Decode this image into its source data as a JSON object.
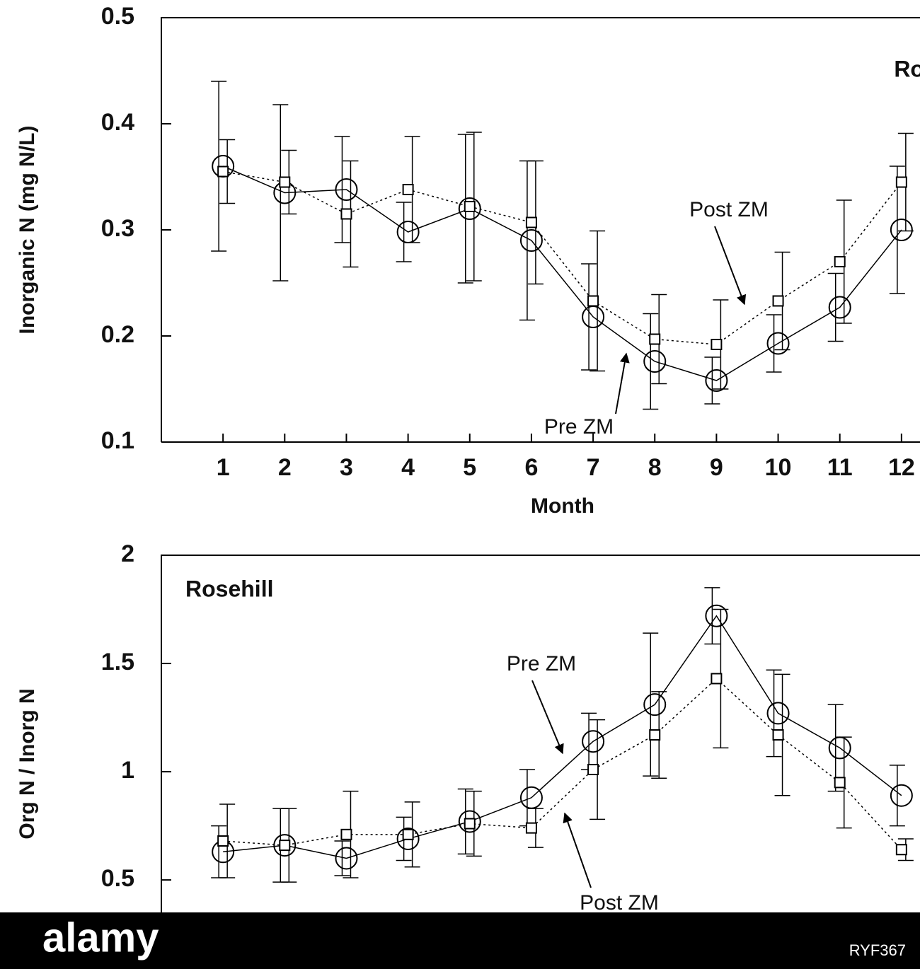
{
  "chart_data": [
    {
      "type": "line",
      "y_label": "Inorganic N (mg N/L)",
      "x_label": "Month",
      "x": [
        1,
        2,
        3,
        4,
        5,
        6,
        7,
        8,
        9,
        10,
        11,
        12
      ],
      "xlim": [
        0,
        12.3
      ],
      "xticks": [
        1,
        2,
        3,
        4,
        5,
        6,
        7,
        8,
        9,
        10,
        11,
        12
      ],
      "ylim": [
        0.1,
        0.5
      ],
      "yticks": [
        0.1,
        0.2,
        0.3,
        0.4,
        0.5
      ],
      "annotations": [
        "Rosehi",
        "Post ZM",
        "Pre ZM"
      ],
      "series": [
        {
          "name": "Pre ZM",
          "color": "#000000",
          "marker": "circle",
          "dash": "solid",
          "values": [
            0.36,
            0.335,
            0.338,
            0.298,
            0.32,
            0.29,
            0.218,
            0.176,
            0.158,
            0.193,
            0.227,
            0.3
          ],
          "errors": [
            0.08,
            0.083,
            0.05,
            0.028,
            0.07,
            0.075,
            0.05,
            0.045,
            0.022,
            0.027,
            0.032,
            0.06
          ]
        },
        {
          "name": "Post ZM",
          "color": "#000000",
          "marker": "square",
          "dash": "dotted",
          "values": [
            0.355,
            0.345,
            0.315,
            0.338,
            0.322,
            0.307,
            0.233,
            0.197,
            0.192,
            0.233,
            0.27,
            0.345
          ],
          "errors": [
            0.03,
            0.03,
            0.05,
            0.05,
            0.07,
            0.058,
            0.066,
            0.042,
            0.042,
            0.046,
            0.058,
            0.046
          ]
        }
      ]
    },
    {
      "type": "line",
      "y_label": "Org N / Inorg N",
      "x": [
        1,
        2,
        3,
        4,
        5,
        6,
        7,
        8,
        9,
        10,
        11,
        12
      ],
      "xlim": [
        0,
        12.3
      ],
      "ylim": [
        0.35,
        2
      ],
      "yticks": [
        0.5,
        1,
        1.5,
        2
      ],
      "annotations": [
        "Rosehill",
        "Pre ZM",
        "Post ZM"
      ],
      "series": [
        {
          "name": "Pre ZM",
          "color": "#000000",
          "marker": "circle",
          "dash": "solid",
          "values": [
            0.63,
            0.66,
            0.6,
            0.69,
            0.77,
            0.88,
            1.14,
            1.31,
            1.72,
            1.27,
            1.11,
            0.89
          ],
          "errors": [
            0.12,
            0.17,
            0.08,
            0.1,
            0.15,
            0.13,
            0.13,
            0.33,
            0.13,
            0.2,
            0.2,
            0.14
          ]
        },
        {
          "name": "Post ZM",
          "color": "#000000",
          "marker": "square",
          "dash": "dotted",
          "values": [
            0.68,
            0.66,
            0.71,
            0.71,
            0.76,
            0.74,
            1.01,
            1.17,
            1.43,
            1.17,
            0.95,
            0.64
          ],
          "errors": [
            0.17,
            0.17,
            0.2,
            0.15,
            0.15,
            0.09,
            0.23,
            0.2,
            0.32,
            0.28,
            0.21,
            0.05
          ]
        }
      ]
    }
  ],
  "watermark": {
    "brand": "alamy",
    "id": "RYF367"
  }
}
